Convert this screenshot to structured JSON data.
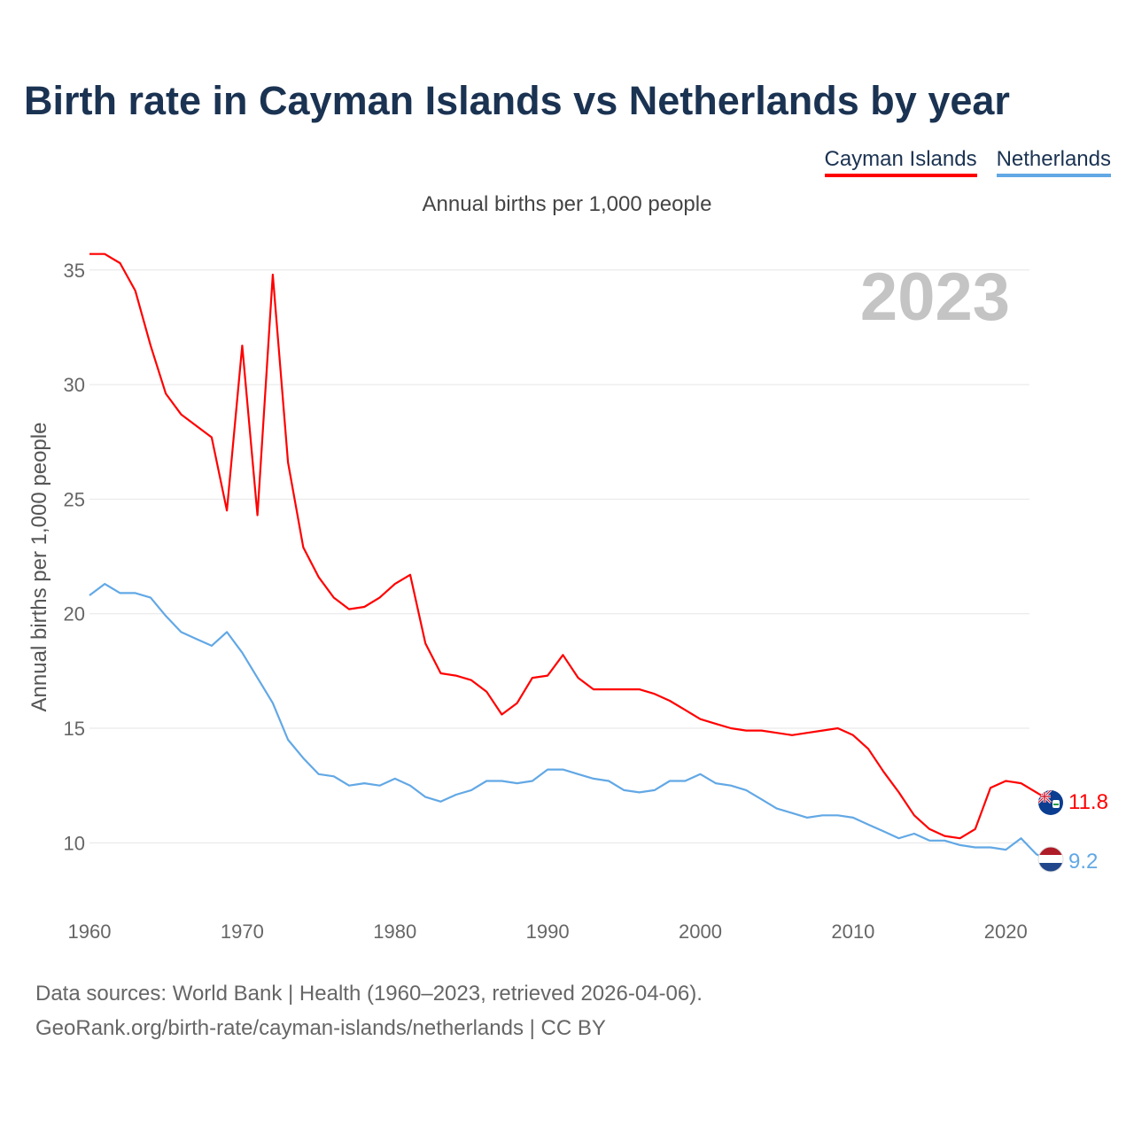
{
  "title": "Birth rate in Cayman Islands vs Netherlands by year",
  "subtitle": "Annual births per 1,000 people",
  "year_label": "2023",
  "footer": {
    "sources": "Data sources: World Bank | Health (1960–2023, retrieved 2026-04-06).",
    "url": "GeoRank.org/birth-rate/cayman-islands/netherlands | CC BY"
  },
  "chart_data": {
    "type": "line",
    "title": "Birth rate in Cayman Islands vs Netherlands by year",
    "subtitle": "Annual births per 1,000 people",
    "xlabel": "",
    "ylabel": "Annual births per 1,000 people",
    "xlim": [
      1960,
      2023
    ],
    "ylim": [
      7.5,
      36.5
    ],
    "xticks": [
      1960,
      1970,
      1980,
      1990,
      2000,
      2010,
      2020
    ],
    "yticks": [
      10,
      15,
      20,
      25,
      30,
      35
    ],
    "grid": true,
    "legend": "top-right",
    "x": [
      1960,
      1961,
      1962,
      1963,
      1964,
      1965,
      1966,
      1967,
      1968,
      1969,
      1970,
      1971,
      1972,
      1973,
      1974,
      1975,
      1976,
      1977,
      1978,
      1979,
      1980,
      1981,
      1982,
      1983,
      1984,
      1985,
      1986,
      1987,
      1988,
      1989,
      1990,
      1991,
      1992,
      1993,
      1994,
      1995,
      1996,
      1997,
      1998,
      1999,
      2000,
      2001,
      2002,
      2003,
      2004,
      2005,
      2006,
      2007,
      2008,
      2009,
      2010,
      2011,
      2012,
      2013,
      2014,
      2015,
      2016,
      2017,
      2018,
      2019,
      2020,
      2021,
      2022,
      2023
    ],
    "series": [
      {
        "name": "Cayman Islands",
        "color": "#ff0000",
        "end_label": "11.8",
        "values": [
          35.7,
          35.7,
          35.3,
          34.1,
          31.7,
          29.6,
          28.7,
          28.2,
          27.7,
          24.5,
          31.7,
          24.3,
          34.8,
          26.6,
          22.9,
          21.6,
          20.7,
          20.2,
          20.3,
          20.7,
          21.3,
          21.7,
          18.7,
          17.4,
          17.3,
          17.1,
          16.6,
          15.6,
          16.1,
          17.2,
          17.3,
          18.2,
          17.2,
          16.7,
          16.7,
          16.7,
          16.7,
          16.5,
          16.2,
          15.8,
          15.4,
          15.2,
          15.0,
          14.9,
          14.9,
          14.8,
          14.7,
          14.8,
          14.9,
          15.0,
          14.7,
          14.1,
          13.1,
          12.2,
          11.2,
          10.6,
          10.3,
          10.2,
          10.6,
          12.4,
          12.7,
          12.6,
          12.2,
          11.8
        ]
      },
      {
        "name": "Netherlands",
        "color": "#62a8e5",
        "end_label": "9.2",
        "values": [
          20.8,
          21.3,
          20.9,
          20.9,
          20.7,
          19.9,
          19.2,
          18.9,
          18.6,
          19.2,
          18.3,
          17.2,
          16.1,
          14.5,
          13.7,
          13.0,
          12.9,
          12.5,
          12.6,
          12.5,
          12.8,
          12.5,
          12.0,
          11.8,
          12.1,
          12.3,
          12.7,
          12.7,
          12.6,
          12.7,
          13.2,
          13.2,
          13.0,
          12.8,
          12.7,
          12.3,
          12.2,
          12.3,
          12.7,
          12.7,
          13.0,
          12.6,
          12.5,
          12.3,
          11.9,
          11.5,
          11.3,
          11.1,
          11.2,
          11.2,
          11.1,
          10.8,
          10.5,
          10.2,
          10.4,
          10.1,
          10.1,
          9.9,
          9.8,
          9.8,
          9.7,
          10.2,
          9.5,
          9.2
        ]
      }
    ]
  }
}
